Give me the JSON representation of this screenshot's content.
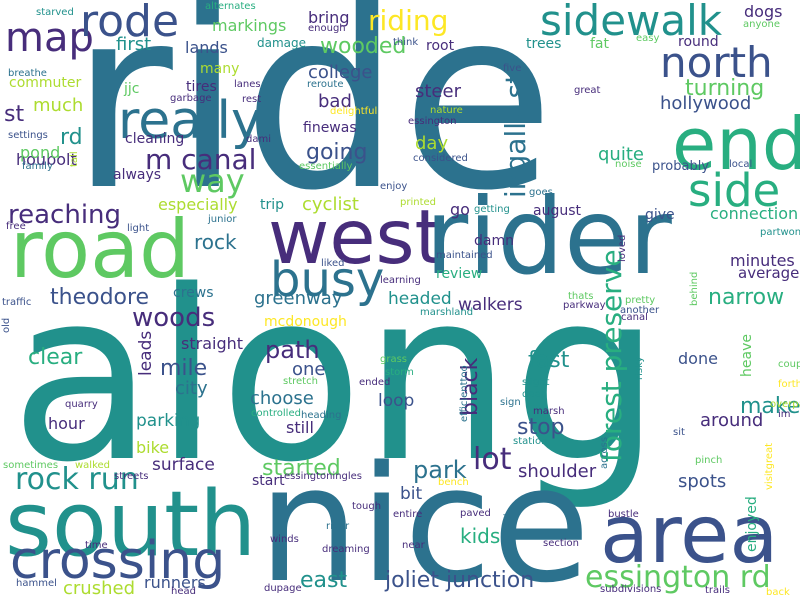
{
  "palette": {
    "dark_purple": "#440154",
    "indigo": "#472d7b",
    "blue": "#3b528b",
    "steel": "#2c728e",
    "teal": "#21918c",
    "green_teal": "#28ae80",
    "green": "#5ec962",
    "lime": "#addc30",
    "yellow": "#fde725"
  },
  "words": [
    {
      "text": "ride",
      "color": "#2c728e"
    },
    {
      "text": "along",
      "color": "#21918c"
    },
    {
      "text": "nice",
      "color": "#2c728e"
    },
    {
      "text": "west",
      "color": "#472d7b"
    },
    {
      "text": "rider",
      "color": "#2c728e"
    },
    {
      "text": "south",
      "color": "#21918c"
    },
    {
      "text": "road",
      "color": "#5ec962"
    },
    {
      "text": "area",
      "color": "#3b528b"
    },
    {
      "text": "end",
      "color": "#28ae80"
    },
    {
      "text": "side",
      "color": "#28ae80"
    },
    {
      "text": "crossing",
      "color": "#3b528b"
    },
    {
      "text": "sidewalk",
      "color": "#21918c"
    },
    {
      "text": "really",
      "color": "#2c728e"
    },
    {
      "text": "north",
      "color": "#3b528b"
    },
    {
      "text": "map",
      "color": "#472d7b"
    },
    {
      "text": "rode",
      "color": "#3b528b"
    },
    {
      "text": "busy",
      "color": "#2c728e"
    },
    {
      "text": "rock run",
      "color": "#21918c"
    },
    {
      "text": "essington rd",
      "color": "#5ec962"
    },
    {
      "text": "forest preserve",
      "color": "#28ae80"
    },
    {
      "text": "ingalls st",
      "color": "#2c728e"
    },
    {
      "text": "way",
      "color": "#5ec962"
    },
    {
      "text": "m canal",
      "color": "#472d7b"
    },
    {
      "text": "woods",
      "color": "#472d7b"
    },
    {
      "text": "path",
      "color": "#472d7b"
    },
    {
      "text": "riding",
      "color": "#fde725"
    },
    {
      "text": "wooded",
      "color": "#5ec962"
    },
    {
      "text": "lot",
      "color": "#472d7b"
    },
    {
      "text": "park",
      "color": "#2c728e"
    },
    {
      "text": "joliet junction",
      "color": "#3b528b"
    },
    {
      "text": "east",
      "color": "#21918c"
    },
    {
      "text": "theodore",
      "color": "#3b528b"
    },
    {
      "text": "turning",
      "color": "#5ec962"
    },
    {
      "text": "narrow",
      "color": "#28ae80"
    },
    {
      "text": "reaching",
      "color": "#472d7b"
    },
    {
      "text": "black",
      "color": "#472d7b"
    },
    {
      "text": "started",
      "color": "#5ec962"
    },
    {
      "text": "mile",
      "color": "#3b528b"
    },
    {
      "text": "clear",
      "color": "#28ae80"
    },
    {
      "text": "going",
      "color": "#3b528b"
    },
    {
      "text": "cyclist",
      "color": "#addc30"
    },
    {
      "text": "fast",
      "color": "#21918c"
    },
    {
      "text": "stop",
      "color": "#3b528b"
    },
    {
      "text": "make",
      "color": "#21918c"
    },
    {
      "text": "around",
      "color": "#472d7b"
    },
    {
      "text": "hollywood",
      "color": "#3b528b"
    },
    {
      "text": "kids",
      "color": "#28ae80"
    },
    {
      "text": "shoulder",
      "color": "#472d7b"
    },
    {
      "text": "spots",
      "color": "#3b528b"
    },
    {
      "text": "especially",
      "color": "#addc30"
    },
    {
      "text": "connection",
      "color": "#28ae80"
    },
    {
      "text": "rock",
      "color": "#2c728e"
    },
    {
      "text": "greenway",
      "color": "#2c728e"
    },
    {
      "text": "headed",
      "color": "#21918c"
    },
    {
      "text": "walkers",
      "color": "#472d7b"
    },
    {
      "text": "one",
      "color": "#3b528b"
    },
    {
      "text": "choose",
      "color": "#2c728e"
    },
    {
      "text": "loop",
      "color": "#3b528b"
    },
    {
      "text": "bit",
      "color": "#3b528b"
    },
    {
      "text": "surface",
      "color": "#472d7b"
    },
    {
      "text": "crushed",
      "color": "#addc30"
    },
    {
      "text": "runners",
      "color": "#3b528b"
    },
    {
      "text": "college",
      "color": "#3b528b"
    },
    {
      "text": "bad",
      "color": "#472d7b"
    },
    {
      "text": "steer",
      "color": "#472d7b"
    },
    {
      "text": "day",
      "color": "#addc30"
    },
    {
      "text": "quite",
      "color": "#28ae80"
    },
    {
      "text": "probably",
      "color": "#3b528b"
    },
    {
      "text": "city",
      "color": "#2c728e"
    },
    {
      "text": "parking",
      "color": "#21918c"
    },
    {
      "text": "straight",
      "color": "#472d7b"
    },
    {
      "text": "leads",
      "color": "#472d7b"
    },
    {
      "text": "still",
      "color": "#472d7b"
    },
    {
      "text": "bike",
      "color": "#addc30"
    },
    {
      "text": "hour",
      "color": "#472d7b"
    },
    {
      "text": "done",
      "color": "#3b528b"
    },
    {
      "text": "minutes",
      "color": "#472d7b"
    },
    {
      "text": "average",
      "color": "#472d7b"
    },
    {
      "text": "st",
      "color": "#472d7b"
    },
    {
      "text": "rd",
      "color": "#21918c"
    },
    {
      "text": "much",
      "color": "#addc30"
    },
    {
      "text": "first",
      "color": "#21918c"
    },
    {
      "text": "lands",
      "color": "#3b528b"
    },
    {
      "text": "markings",
      "color": "#5ec962"
    },
    {
      "text": "bring",
      "color": "#472d7b"
    },
    {
      "text": "dogs",
      "color": "#472d7b"
    },
    {
      "text": "anyone",
      "color": "#5ec962"
    },
    {
      "text": "round",
      "color": "#472d7b"
    },
    {
      "text": "trees",
      "color": "#21918c"
    },
    {
      "text": "fat",
      "color": "#5ec962"
    },
    {
      "text": "root",
      "color": "#472d7b"
    },
    {
      "text": "tires",
      "color": "#472d7b"
    },
    {
      "text": "many",
      "color": "#addc30"
    },
    {
      "text": "damage",
      "color": "#21918c"
    },
    {
      "text": "cleaning",
      "color": "#472d7b"
    },
    {
      "text": "always",
      "color": "#472d7b"
    },
    {
      "text": "houbolt",
      "color": "#472d7b"
    },
    {
      "text": "pond",
      "color": "#5ec962"
    },
    {
      "text": "commuter",
      "color": "#addc30"
    },
    {
      "text": "finewas",
      "color": "#472d7b"
    },
    {
      "text": "review",
      "color": "#28ae80"
    },
    {
      "text": "go",
      "color": "#472d7b"
    },
    {
      "text": "august",
      "color": "#472d7b"
    },
    {
      "text": "give",
      "color": "#3b528b"
    },
    {
      "text": "crews",
      "color": "#2c728e"
    },
    {
      "text": "mcdonough",
      "color": "#fde725"
    },
    {
      "text": "damn",
      "color": "#472d7b"
    },
    {
      "text": "heave",
      "color": "#5ec962"
    },
    {
      "text": "enjoyed",
      "color": "#28ae80"
    },
    {
      "text": "start",
      "color": "#472d7b"
    },
    {
      "text": "trip",
      "color": "#21918c"
    },
    {
      "text": "jjc",
      "color": "#5ec962"
    },
    {
      "text": "lanes",
      "color": "#472d7b"
    },
    {
      "text": "rest",
      "color": "#472d7b"
    },
    {
      "text": "reroute",
      "color": "#2c728e"
    },
    {
      "text": "delightful",
      "color": "#fde725"
    },
    {
      "text": "nature",
      "color": "#addc30"
    },
    {
      "text": "essington",
      "color": "#472d7b"
    },
    {
      "text": "great",
      "color": "#472d7b"
    },
    {
      "text": "enough",
      "color": "#472d7b"
    },
    {
      "text": "think",
      "color": "#3b528b"
    },
    {
      "text": "easy",
      "color": "#5ec962"
    },
    {
      "text": "five",
      "color": "#3b528b"
    },
    {
      "text": "alternates",
      "color": "#28ae80"
    },
    {
      "text": "starved",
      "color": "#21918c"
    },
    {
      "text": "breathe",
      "color": "#2c728e"
    },
    {
      "text": "garbage",
      "color": "#472d7b"
    },
    {
      "text": "settings",
      "color": "#3b528b"
    },
    {
      "text": "family",
      "color": "#2c728e"
    },
    {
      "text": "tall",
      "color": "#addc30"
    },
    {
      "text": "dami",
      "color": "#472d7b"
    },
    {
      "text": "essentially",
      "color": "#5ec962"
    },
    {
      "text": "considered",
      "color": "#3b528b"
    },
    {
      "text": "noise",
      "color": "#5ec962"
    },
    {
      "text": "local",
      "color": "#3b528b"
    },
    {
      "text": "goes",
      "color": "#2c728e"
    },
    {
      "text": "enjoy",
      "color": "#3b528b"
    },
    {
      "text": "printed",
      "color": "#addc30"
    },
    {
      "text": "getting",
      "color": "#21918c"
    },
    {
      "text": "junior",
      "color": "#2c728e"
    },
    {
      "text": "light",
      "color": "#3b528b"
    },
    {
      "text": "free",
      "color": "#472d7b"
    },
    {
      "text": "liked",
      "color": "#3b528b"
    },
    {
      "text": "maintained",
      "color": "#3b528b"
    },
    {
      "text": "learning",
      "color": "#472d7b"
    },
    {
      "text": "loved",
      "color": "#472d7b"
    },
    {
      "text": "partwonderfully",
      "color": "#21918c"
    },
    {
      "text": "pretty",
      "color": "#5ec962"
    },
    {
      "text": "another",
      "color": "#3b528b"
    },
    {
      "text": "canal",
      "color": "#472d7b"
    },
    {
      "text": "behind",
      "color": "#5ec962"
    },
    {
      "text": "thats",
      "color": "#5ec962"
    },
    {
      "text": "parkway",
      "color": "#472d7b"
    },
    {
      "text": "marshland",
      "color": "#21918c"
    },
    {
      "text": "risky",
      "color": "#21918c"
    },
    {
      "text": "traffic",
      "color": "#3b528b"
    },
    {
      "text": "old",
      "color": "#3b528b"
    },
    {
      "text": "efficienttoo",
      "color": "#2c728e"
    },
    {
      "text": "grass",
      "color": "#5ec962"
    },
    {
      "text": "storm",
      "color": "#28ae80"
    },
    {
      "text": "stretch",
      "color": "#5ec962"
    },
    {
      "text": "ended",
      "color": "#472d7b"
    },
    {
      "text": "slight",
      "color": "#21918c"
    },
    {
      "text": "deep",
      "color": "#21918c"
    },
    {
      "text": "sign",
      "color": "#2c728e"
    },
    {
      "text": "marsh",
      "color": "#472d7b"
    },
    {
      "text": "station",
      "color": "#21918c"
    },
    {
      "text": "couple",
      "color": "#5ec962"
    },
    {
      "text": "forth",
      "color": "#fde725"
    },
    {
      "text": "overpass",
      "color": "#addc30"
    },
    {
      "text": "im",
      "color": "#472d7b"
    },
    {
      "text": "visitgreat",
      "color": "#fde725"
    },
    {
      "text": "across",
      "color": "#2c728e"
    },
    {
      "text": "pinch",
      "color": "#5ec962"
    },
    {
      "text": "sit",
      "color": "#3b528b"
    },
    {
      "text": "quarry",
      "color": "#472d7b"
    },
    {
      "text": "controlled",
      "color": "#28ae80"
    },
    {
      "text": "heading",
      "color": "#2c728e"
    },
    {
      "text": "sometimes",
      "color": "#5ec962"
    },
    {
      "text": "walked",
      "color": "#addc30"
    },
    {
      "text": "streets",
      "color": "#472d7b"
    },
    {
      "text": "essingtoningles",
      "color": "#472d7b"
    },
    {
      "text": "bench",
      "color": "#fde725"
    },
    {
      "text": "tough",
      "color": "#472d7b"
    },
    {
      "text": "entire",
      "color": "#472d7b"
    },
    {
      "text": "paved",
      "color": "#472d7b"
    },
    {
      "text": "country",
      "color": "#2c728e"
    },
    {
      "text": "bustle",
      "color": "#472d7b"
    },
    {
      "text": "section",
      "color": "#472d7b"
    },
    {
      "text": "river",
      "color": "#2c728e"
    },
    {
      "text": "winds",
      "color": "#472d7b"
    },
    {
      "text": "dreaming",
      "color": "#472d7b"
    },
    {
      "text": "near",
      "color": "#472d7b"
    },
    {
      "text": "time",
      "color": "#472d7b"
    },
    {
      "text": "hammel",
      "color": "#3b528b"
    },
    {
      "text": "head",
      "color": "#472d7b"
    },
    {
      "text": "dupage",
      "color": "#472d7b"
    },
    {
      "text": "subdivisions",
      "color": "#472d7b"
    },
    {
      "text": "trails",
      "color": "#472d7b"
    },
    {
      "text": "back",
      "color": "#fde725"
    }
  ]
}
